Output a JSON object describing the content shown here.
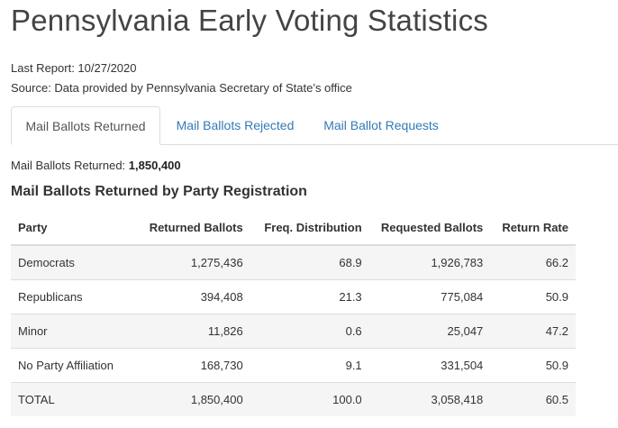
{
  "page": {
    "title": "Pennsylvania Early Voting Statistics",
    "last_report": "Last Report: 10/27/2020",
    "source": "Source: Data provided by Pennsylvania Secretary of State’s office"
  },
  "tabs": [
    {
      "label": "Mail Ballots Returned",
      "active": true
    },
    {
      "label": "Mail Ballots Rejected",
      "active": false
    },
    {
      "label": "Mail Ballot Requests",
      "active": false
    }
  ],
  "summary": {
    "label": "Mail Ballots Returned:",
    "value": "1,850,400"
  },
  "section_title": "Mail Ballots Returned by Party Registration",
  "table": {
    "headers": [
      "Party",
      "Returned Ballots",
      "Freq. Distribution",
      "Requested Ballots",
      "Return Rate"
    ],
    "rows": [
      [
        "Democrats",
        "1,275,436",
        "68.9",
        "1,926,783",
        "66.2"
      ],
      [
        "Republicans",
        "394,408",
        "21.3",
        "775,084",
        "50.9"
      ],
      [
        "Minor",
        "11,826",
        "0.6",
        "25,047",
        "47.2"
      ],
      [
        "No Party Affiliation",
        "168,730",
        "9.1",
        "331,504",
        "50.9"
      ],
      [
        "TOTAL",
        "1,850,400",
        "100.0",
        "3,058,418",
        "60.5"
      ]
    ]
  },
  "colors": {
    "link": "#337ab7",
    "border": "#dddddd",
    "stripe": "#f5f5f5"
  }
}
